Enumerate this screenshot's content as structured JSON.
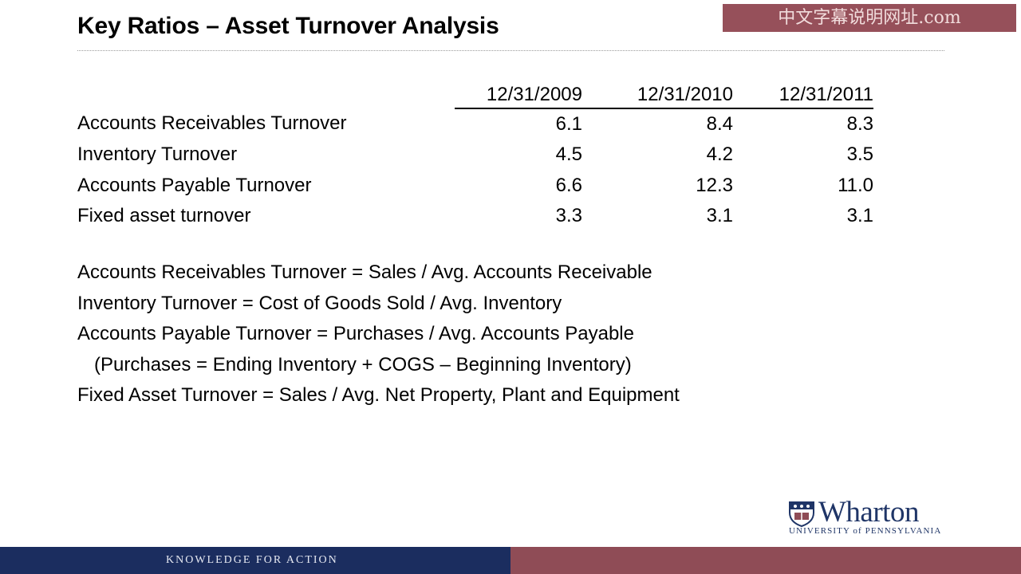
{
  "slide": {
    "title": "Key Ratios – Asset Turnover Analysis"
  },
  "watermark": {
    "text": "中文字幕说明网址.com"
  },
  "table": {
    "columns": [
      "12/31/2009",
      "12/31/2010",
      "12/31/2011"
    ],
    "rows": [
      {
        "label": "Accounts Receivables Turnover",
        "values": [
          "6.1",
          "8.4",
          "8.3"
        ]
      },
      {
        "label": "Inventory Turnover",
        "values": [
          "4.5",
          "4.2",
          "3.5"
        ]
      },
      {
        "label": "Accounts Payable Turnover",
        "values": [
          "6.6",
          "12.3",
          "11.0"
        ]
      },
      {
        "label": "Fixed asset turnover",
        "values": [
          "3.3",
          "3.1",
          "3.1"
        ]
      }
    ]
  },
  "formulas": [
    "Accounts Receivables Turnover = Sales / Avg. Accounts Receivable",
    "Inventory Turnover = Cost of Goods Sold / Avg. Inventory",
    "Accounts Payable Turnover = Purchases / Avg. Accounts Payable",
    "(Purchases = Ending Inventory + COGS – Beginning Inventory)",
    "Fixed Asset Turnover = Sales / Avg. Net Property, Plant and Equipment"
  ],
  "logo": {
    "name": "Wharton",
    "subtitle": "UNIVERSITY of PENNSYLVANIA",
    "icon": "penn-shield-icon"
  },
  "footer": {
    "tagline": "KNOWLEDGE FOR ACTION"
  },
  "colors": {
    "footer_left": "#1b2d5f",
    "footer_right": "#8f4c56",
    "logo_blue": "#1f3567",
    "watermark_bg": "#96505a"
  }
}
